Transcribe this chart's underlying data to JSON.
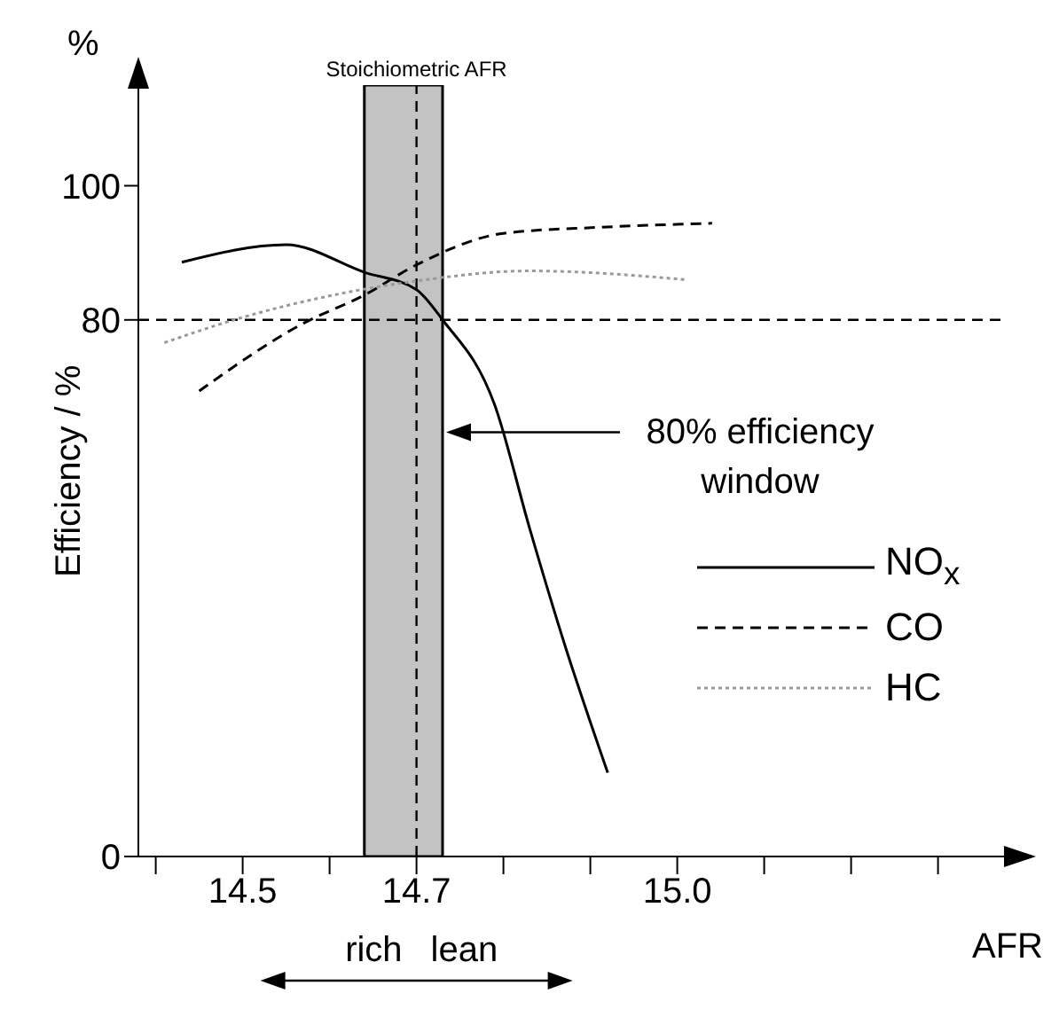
{
  "chart_data": {
    "type": "line",
    "xlabel": "AFR",
    "ylabel": "Efficiency / %",
    "xlim": [
      14.38,
      15.38
    ],
    "ylim": [
      0,
      115
    ],
    "xticks": [
      {
        "value": 14.4,
        "label": null
      },
      14.5,
      {
        "value": 14.6,
        "label": null
      },
      14.7,
      {
        "value": 14.8,
        "label": null
      },
      {
        "value": 14.9,
        "label": null
      },
      {
        "value": 15,
        "label": "15.0"
      },
      {
        "value": 15.1,
        "label": null
      },
      {
        "value": 15.2,
        "label": null
      },
      {
        "value": 15.3,
        "label": null
      }
    ],
    "yticks": [
      0,
      80,
      100
    ],
    "legend": "bottom right",
    "marker": "none",
    "series": [
      {
        "name": "NO$_{x}$",
        "color": "#000000",
        "line_style": "solid",
        "x": [
          14.43,
          14.55,
          14.64,
          14.7,
          14.73,
          14.79,
          14.83,
          14.87,
          14.92
        ],
        "values": [
          88.6,
          91.2,
          87.1,
          84.5,
          80,
          67.3,
          49,
          31.8,
          12.5
        ]
      },
      {
        "name": "CO",
        "color": "#000000",
        "line_style": "dashed",
        "x": [
          14.45,
          14.57,
          14.64,
          14.7,
          14.8,
          14.91,
          15.04
        ],
        "values": [
          69.4,
          79.5,
          83.7,
          88.2,
          92.9,
          93.8,
          94.4
        ]
      },
      {
        "name": "HC",
        "color": "#999999",
        "line_style": "dotted",
        "x": [
          14.41,
          14.49,
          14.62,
          14.7,
          14.83,
          15.01
        ],
        "values": [
          76.6,
          80,
          84.1,
          85.8,
          87.3,
          86
        ]
      }
    ],
    "ref_lines": [
      {
        "axis": "x",
        "value": 14.7,
        "label": "Stoichiometric AFR",
        "line_style": "dashed",
        "color": "#000000"
      },
      {
        "axis": "y",
        "value": 80,
        "label": null,
        "line_style": "dashed",
        "color": "#000000"
      }
    ],
    "bands": [
      {
        "axis": "x",
        "from": 14.64,
        "to": 14.73,
        "label": null,
        "color": "#aaaaaa"
      }
    ],
    "annotations": [
      "%",
      "80% efficiency window",
      "rich",
      "lean"
    ]
  }
}
